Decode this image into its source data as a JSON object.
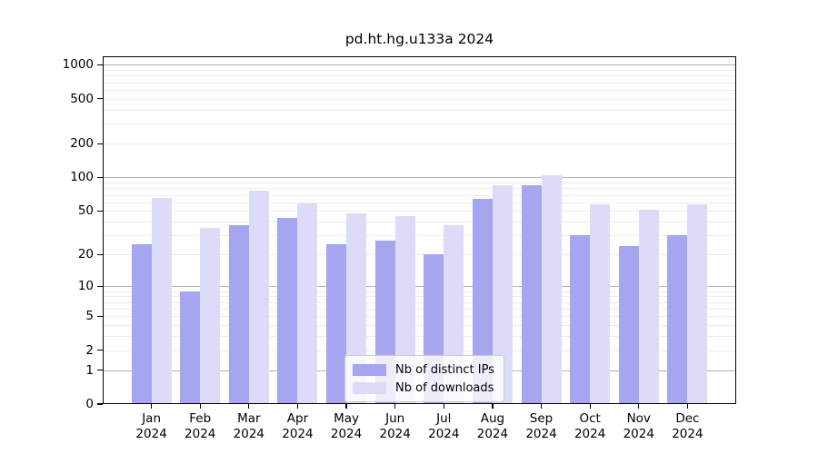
{
  "title": "pd.ht.hg.u133a 2024",
  "chart_data": {
    "type": "bar",
    "title": "pd.ht.hg.u133a 2024",
    "categories": [
      "Jan",
      "Feb",
      "Mar",
      "Apr",
      "May",
      "Jun",
      "Jul",
      "Aug",
      "Sep",
      "Oct",
      "Nov",
      "Dec"
    ],
    "x_year": "2024",
    "series": [
      {
        "name": "Nb of distinct IPs",
        "color": "#a5a5f0",
        "values": [
          25,
          9,
          37,
          43,
          25,
          27,
          20,
          64,
          85,
          30,
          24,
          30
        ]
      },
      {
        "name": "Nb of downloads",
        "color": "#dcdcf8",
        "values": [
          66,
          35,
          76,
          59,
          48,
          45,
          37,
          86,
          104,
          57,
          51,
          57
        ]
      }
    ],
    "yscale": "log10(value+1)",
    "ylim": [
      0,
      1000
    ],
    "yticks": [
      0,
      1,
      2,
      5,
      10,
      20,
      50,
      100,
      200,
      500,
      1000
    ],
    "major_gridlines": [
      1,
      10,
      100,
      1000
    ],
    "grid": "horizontal, log minor + major",
    "legend_position": "inside bottom-center",
    "xlabel": "",
    "ylabel": ""
  }
}
